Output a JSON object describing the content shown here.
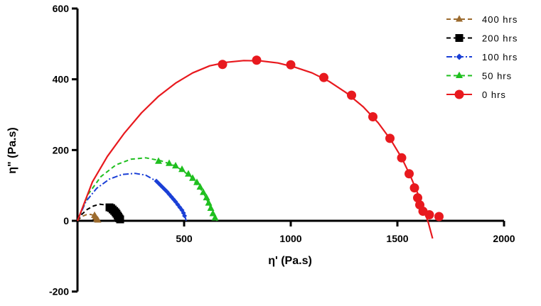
{
  "chart_data": {
    "type": "scatter",
    "title": "",
    "xlabel": "η' (Pa.s)",
    "ylabel": "η\" (Pa.s)",
    "xlim": [
      0,
      2000
    ],
    "ylim": [
      -200,
      600
    ],
    "xticks": [
      500,
      1000,
      1500,
      2000
    ],
    "yticks": [
      -200,
      0,
      200,
      400,
      600
    ],
    "x_tick_labels": [
      "500",
      "1000",
      "1500",
      "2000"
    ],
    "y_tick_labels": [
      "-200",
      "0",
      "200",
      "400",
      "600"
    ],
    "grid": false,
    "legend_position": "top-right",
    "series": [
      {
        "name": "400 hrs",
        "color": "#9C6B2E",
        "marker": "triangle",
        "line_style": "dashed",
        "points": [
          [
            80,
            15
          ],
          [
            85,
            10
          ],
          [
            90,
            5
          ],
          [
            95,
            2
          ]
        ],
        "fit": [
          [
            0,
            0
          ],
          [
            20,
            12
          ],
          [
            40,
            17
          ],
          [
            60,
            18
          ],
          [
            80,
            15
          ],
          [
            95,
            5
          ],
          [
            100,
            0
          ]
        ]
      },
      {
        "name": "200 hrs",
        "color": "#000000",
        "marker": "square",
        "line_style": "dashed",
        "points": [
          [
            150,
            38
          ],
          [
            158,
            36
          ],
          [
            165,
            32
          ],
          [
            172,
            28
          ],
          [
            178,
            24
          ],
          [
            183,
            20
          ],
          [
            188,
            15
          ],
          [
            192,
            11
          ],
          [
            196,
            7
          ],
          [
            200,
            4
          ]
        ],
        "fit": [
          [
            0,
            0
          ],
          [
            20,
            18
          ],
          [
            45,
            32
          ],
          [
            75,
            42
          ],
          [
            105,
            47
          ],
          [
            130,
            45
          ],
          [
            155,
            38
          ],
          [
            180,
            24
          ],
          [
            200,
            4
          ],
          [
            205,
            0
          ]
        ]
      },
      {
        "name": "100 hrs",
        "color": "#1A3FD6",
        "marker": "diamond",
        "line_style": "dash-dot",
        "points": [
          [
            370,
            112
          ],
          [
            380,
            106
          ],
          [
            390,
            100
          ],
          [
            400,
            94
          ],
          [
            410,
            88
          ],
          [
            420,
            82
          ],
          [
            430,
            75
          ],
          [
            440,
            68
          ],
          [
            450,
            61
          ],
          [
            460,
            54
          ],
          [
            470,
            46
          ],
          [
            480,
            38
          ],
          [
            490,
            30
          ],
          [
            497,
            22
          ],
          [
            502,
            14
          ]
        ],
        "fit": [
          [
            0,
            0
          ],
          [
            40,
            55
          ],
          [
            90,
            92
          ],
          [
            150,
            118
          ],
          [
            210,
            131
          ],
          [
            270,
            134
          ],
          [
            320,
            129
          ],
          [
            370,
            112
          ],
          [
            420,
            82
          ],
          [
            460,
            54
          ],
          [
            490,
            30
          ],
          [
            505,
            10
          ],
          [
            510,
            0
          ]
        ]
      },
      {
        "name": "50 hrs",
        "color": "#1FBF1F",
        "marker": "triangle",
        "line_style": "dashed",
        "points": [
          [
            380,
            168
          ],
          [
            430,
            162
          ],
          [
            460,
            155
          ],
          [
            490,
            145
          ],
          [
            520,
            132
          ],
          [
            540,
            120
          ],
          [
            560,
            108
          ],
          [
            575,
            95
          ],
          [
            590,
            80
          ],
          [
            605,
            65
          ],
          [
            615,
            50
          ],
          [
            625,
            35
          ],
          [
            635,
            20
          ],
          [
            645,
            8
          ]
        ],
        "fit": [
          [
            0,
            0
          ],
          [
            50,
            75
          ],
          [
            110,
            125
          ],
          [
            180,
            158
          ],
          [
            250,
            174
          ],
          [
            320,
            178
          ],
          [
            390,
            170
          ],
          [
            460,
            155
          ],
          [
            530,
            126
          ],
          [
            590,
            80
          ],
          [
            630,
            30
          ],
          [
            655,
            0
          ]
        ]
      },
      {
        "name": "0 hrs",
        "color": "#E8191E",
        "marker": "circle",
        "line_style": "solid",
        "points": [
          [
            680,
            442
          ],
          [
            840,
            454
          ],
          [
            1000,
            441
          ],
          [
            1155,
            405
          ],
          [
            1285,
            355
          ],
          [
            1385,
            294
          ],
          [
            1465,
            233
          ],
          [
            1520,
            178
          ],
          [
            1555,
            133
          ],
          [
            1580,
            93
          ],
          [
            1595,
            65
          ],
          [
            1605,
            45
          ],
          [
            1620,
            27
          ],
          [
            1650,
            17
          ],
          [
            1695,
            12
          ]
        ],
        "fit": [
          [
            0,
            0
          ],
          [
            70,
            110
          ],
          [
            140,
            182
          ],
          [
            220,
            248
          ],
          [
            300,
            305
          ],
          [
            380,
            352
          ],
          [
            460,
            389
          ],
          [
            540,
            418
          ],
          [
            620,
            438
          ],
          [
            700,
            448
          ],
          [
            780,
            453
          ],
          [
            860,
            452
          ],
          [
            940,
            446
          ],
          [
            1020,
            434
          ],
          [
            1100,
            418
          ],
          [
            1180,
            394
          ],
          [
            1260,
            362
          ],
          [
            1340,
            322
          ],
          [
            1410,
            277
          ],
          [
            1470,
            228
          ],
          [
            1520,
            178
          ],
          [
            1560,
            128
          ],
          [
            1595,
            78
          ],
          [
            1625,
            30
          ],
          [
            1645,
            -5
          ],
          [
            1665,
            -50
          ]
        ]
      }
    ]
  }
}
